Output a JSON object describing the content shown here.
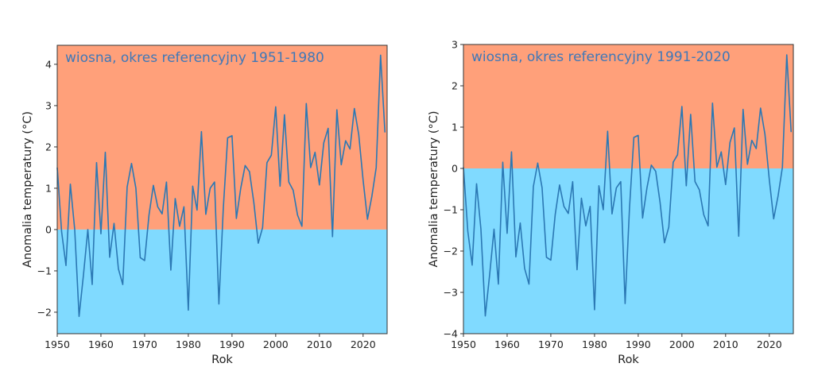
{
  "colors": {
    "positive_bg": "#FFA07A",
    "negative_bg": "#80DAFF",
    "line": "#2B78B4",
    "title": "#3F78B8",
    "axis": "#333333"
  },
  "chart_data": [
    {
      "type": "line",
      "title": "wiosna, okres referencyjny 1951-1980",
      "xlabel": "Rok",
      "ylabel": "Anomalia temperatury (°C)",
      "xlim": [
        1950,
        2025.5
      ],
      "ylim": [
        -2.52,
        4.46
      ],
      "xticks": [
        1950,
        1960,
        1970,
        1980,
        1990,
        2000,
        2010,
        2020
      ],
      "xtick_labels": [
        "1950",
        "1960",
        "1970",
        "1980",
        "1990",
        "2000",
        "2010",
        "2020"
      ],
      "yticks": [
        -2,
        -1,
        0,
        1,
        2,
        3,
        4
      ],
      "ytick_labels": [
        "−2",
        "−1",
        "0",
        "1",
        "2",
        "3",
        "4"
      ],
      "background_split": 0,
      "grid": false,
      "x": [
        1950,
        1951,
        1952,
        1953,
        1954,
        1955,
        1956,
        1957,
        1958,
        1959,
        1960,
        1961,
        1962,
        1963,
        1964,
        1965,
        1966,
        1967,
        1968,
        1969,
        1970,
        1971,
        1972,
        1973,
        1974,
        1975,
        1976,
        1977,
        1978,
        1979,
        1980,
        1981,
        1982,
        1983,
        1984,
        1985,
        1986,
        1987,
        1988,
        1989,
        1990,
        1991,
        1992,
        1993,
        1994,
        1995,
        1996,
        1997,
        1998,
        1999,
        2000,
        2001,
        2002,
        2003,
        2004,
        2005,
        2006,
        2007,
        2008,
        2009,
        2010,
        2011,
        2012,
        2013,
        2014,
        2015,
        2016,
        2017,
        2018,
        2019,
        2020,
        2021,
        2022,
        2023,
        2024,
        2025
      ],
      "series": [
        {
          "name": "anomalia",
          "values": [
            1.5,
            -0.05,
            -0.87,
            1.1,
            0.0,
            -2.1,
            -1.1,
            0.0,
            -1.33,
            1.62,
            -0.1,
            1.87,
            -0.67,
            0.15,
            -0.95,
            -1.33,
            1.03,
            1.6,
            1.0,
            -0.68,
            -0.75,
            0.35,
            1.07,
            0.55,
            0.38,
            1.15,
            -0.98,
            0.75,
            0.08,
            0.55,
            -1.95,
            1.05,
            0.47,
            2.37,
            0.37,
            1.0,
            1.15,
            -1.8,
            0.5,
            2.22,
            2.27,
            0.27,
            1.0,
            1.55,
            1.4,
            0.65,
            -0.33,
            0.05,
            1.62,
            1.8,
            2.97,
            1.05,
            2.78,
            1.15,
            0.95,
            0.35,
            0.08,
            3.05,
            1.5,
            1.87,
            1.08,
            2.1,
            2.45,
            -0.17,
            2.9,
            1.57,
            2.15,
            1.95,
            2.93,
            2.3,
            1.2,
            0.25,
            0.8,
            1.5,
            4.22,
            2.35
          ]
        }
      ]
    },
    {
      "type": "line",
      "title": "wiosna, okres referencyjny 1991-2020",
      "xlabel": "Rok",
      "ylabel": "Anomalia temperatury (°C)",
      "xlim": [
        1950,
        2025.5
      ],
      "ylim": [
        -4,
        3
      ],
      "xticks": [
        1950,
        1960,
        1970,
        1980,
        1990,
        2000,
        2010,
        2020
      ],
      "xtick_labels": [
        "1950",
        "1960",
        "1970",
        "1980",
        "1990",
        "2000",
        "2010",
        "2020"
      ],
      "yticks": [
        -4,
        -3,
        -2,
        -1,
        0,
        1,
        2,
        3
      ],
      "ytick_labels": [
        "−4",
        "−3",
        "−2",
        "−1",
        "0",
        "1",
        "2",
        "3"
      ],
      "background_split": 0,
      "grid": false,
      "x": [
        1950,
        1951,
        1952,
        1953,
        1954,
        1955,
        1956,
        1957,
        1958,
        1959,
        1960,
        1961,
        1962,
        1963,
        1964,
        1965,
        1966,
        1967,
        1968,
        1969,
        1970,
        1971,
        1972,
        1973,
        1974,
        1975,
        1976,
        1977,
        1978,
        1979,
        1980,
        1981,
        1982,
        1983,
        1984,
        1985,
        1986,
        1987,
        1988,
        1989,
        1990,
        1991,
        1992,
        1993,
        1994,
        1995,
        1996,
        1997,
        1998,
        1999,
        2000,
        2001,
        2002,
        2003,
        2004,
        2005,
        2006,
        2007,
        2008,
        2009,
        2010,
        2011,
        2012,
        2013,
        2014,
        2015,
        2016,
        2017,
        2018,
        2019,
        2020,
        2021,
        2022,
        2023,
        2024,
        2025
      ],
      "series": [
        {
          "name": "anomalia",
          "values": [
            0.03,
            -1.52,
            -2.34,
            -0.37,
            -1.47,
            -3.57,
            -2.57,
            -1.47,
            -2.8,
            0.15,
            -1.57,
            0.4,
            -2.14,
            -1.32,
            -2.42,
            -2.8,
            -0.44,
            0.13,
            -0.47,
            -2.15,
            -2.22,
            -1.12,
            -0.4,
            -0.92,
            -1.09,
            -0.32,
            -2.45,
            -0.72,
            -1.39,
            -0.92,
            -3.42,
            -0.42,
            -1.0,
            0.9,
            -1.1,
            -0.47,
            -0.32,
            -3.27,
            -0.97,
            0.75,
            0.8,
            -1.2,
            -0.47,
            0.08,
            -0.07,
            -0.82,
            -1.8,
            -1.42,
            0.15,
            0.33,
            1.5,
            -0.42,
            1.31,
            -0.32,
            -0.52,
            -1.12,
            -1.39,
            1.58,
            0.03,
            0.4,
            -0.39,
            0.63,
            0.98,
            -1.64,
            1.43,
            0.1,
            0.68,
            0.48,
            1.46,
            0.83,
            -0.27,
            -1.22,
            -0.67,
            0.03,
            2.75,
            0.88
          ]
        }
      ]
    }
  ]
}
